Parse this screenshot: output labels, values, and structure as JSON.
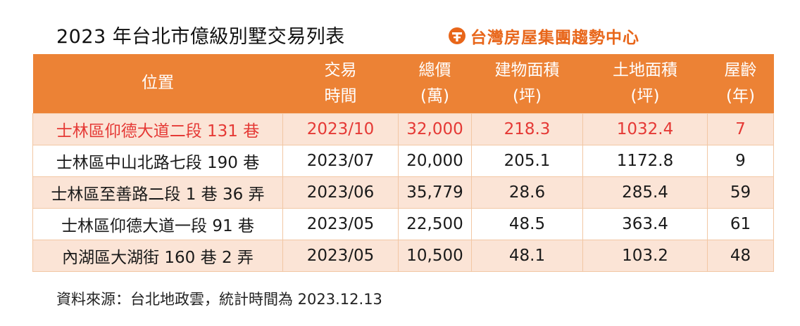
{
  "title": "2023 年台北市億級別墅交易列表",
  "brand": {
    "name": "台灣房屋集團趨勢中心",
    "icon": "taiwan-realty-logo-icon",
    "color": "#e8661a"
  },
  "colors": {
    "header_bg": "#ec8235",
    "row_odd_bg": "#fbe4d6",
    "highlight_text": "#e53935"
  },
  "table": {
    "headers": [
      {
        "line1": "位置",
        "line2": ""
      },
      {
        "line1": "交易",
        "line2": "時間"
      },
      {
        "line1": "總價",
        "line2": "(萬)"
      },
      {
        "line1": "建物面積",
        "line2": "(坪)"
      },
      {
        "line1": "土地面積",
        "line2": "(坪)"
      },
      {
        "line1": "屋齡",
        "line2": "(年)"
      }
    ],
    "rows": [
      [
        "士林區仰德大道二段 131 巷",
        "2023/10",
        "32,000",
        "218.3",
        "1032.4",
        "7"
      ],
      [
        "士林區中山北路七段 190 巷",
        "2023/07",
        "20,000",
        "205.1",
        "1172.8",
        "9"
      ],
      [
        "士林區至善路二段 1 巷 36 弄",
        "2023/06",
        "35,779",
        "28.6",
        "285.4",
        "59"
      ],
      [
        "士林區仰德大道一段 91 巷",
        "2023/05",
        "22,500",
        "48.5",
        "363.4",
        "61"
      ],
      [
        "內湖區大湖街 160 巷 2 弄",
        "2023/05",
        "10,500",
        "48.1",
        "103.2",
        "48"
      ]
    ]
  },
  "source": "資料來源：台北地政雲，統計時間為 2023.12.13"
}
